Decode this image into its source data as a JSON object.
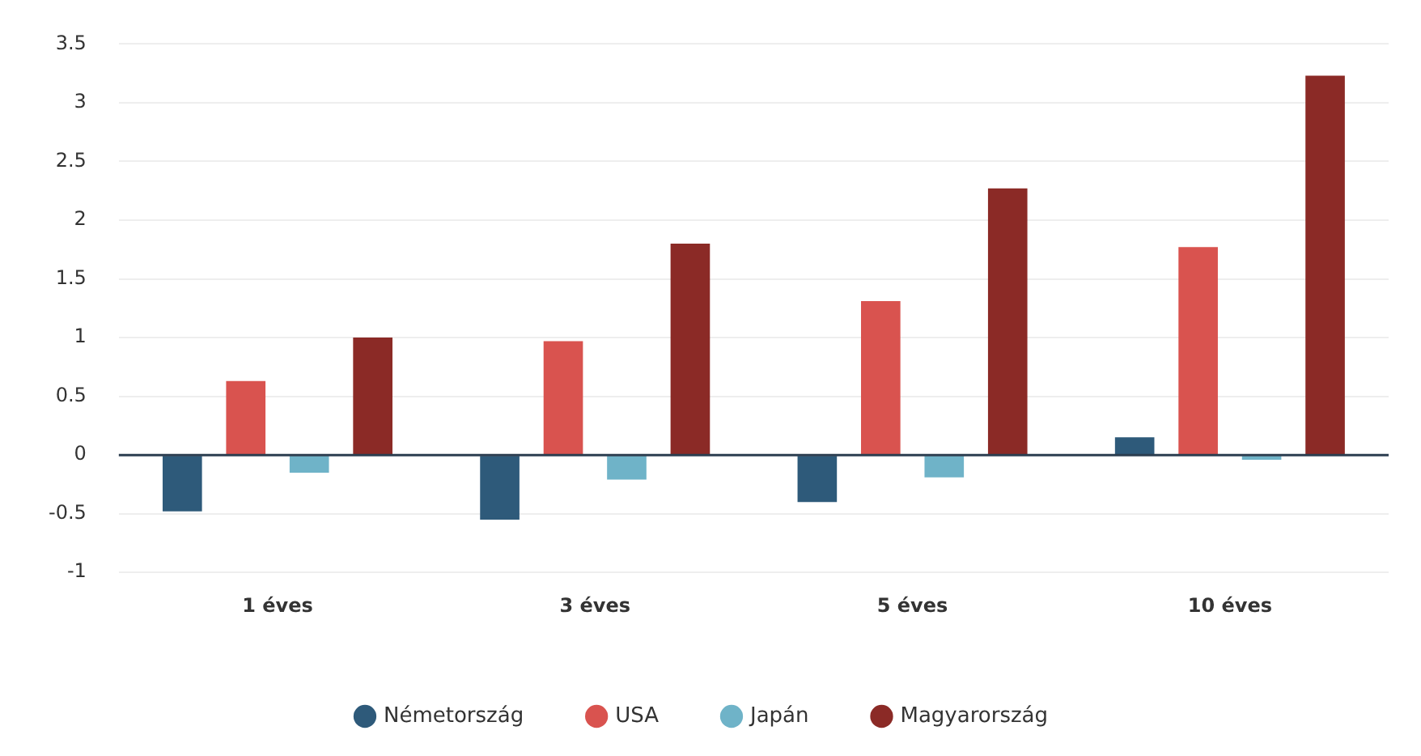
{
  "chart_data": {
    "type": "bar",
    "categories": [
      "1 éves",
      "3 éves",
      "5 éves",
      "10 éves"
    ],
    "series": [
      {
        "name": "Németország",
        "color": "#2e5a7a",
        "values": [
          -0.48,
          -0.55,
          -0.4,
          0.15
        ]
      },
      {
        "name": "USA",
        "color": "#d9534f",
        "values": [
          0.63,
          0.97,
          1.31,
          1.77
        ]
      },
      {
        "name": "Japán",
        "color": "#6fb3c8",
        "values": [
          -0.15,
          -0.21,
          -0.19,
          -0.04
        ]
      },
      {
        "name": "Magyarország",
        "color": "#8b2a26",
        "values": [
          1.0,
          1.8,
          2.27,
          3.23
        ]
      }
    ],
    "ylim": [
      -1,
      3.5
    ],
    "yticks": [
      -1,
      -0.5,
      0,
      0.5,
      1,
      1.5,
      2,
      2.5,
      3,
      3.5
    ],
    "grid": "y",
    "legend": "bottom"
  }
}
